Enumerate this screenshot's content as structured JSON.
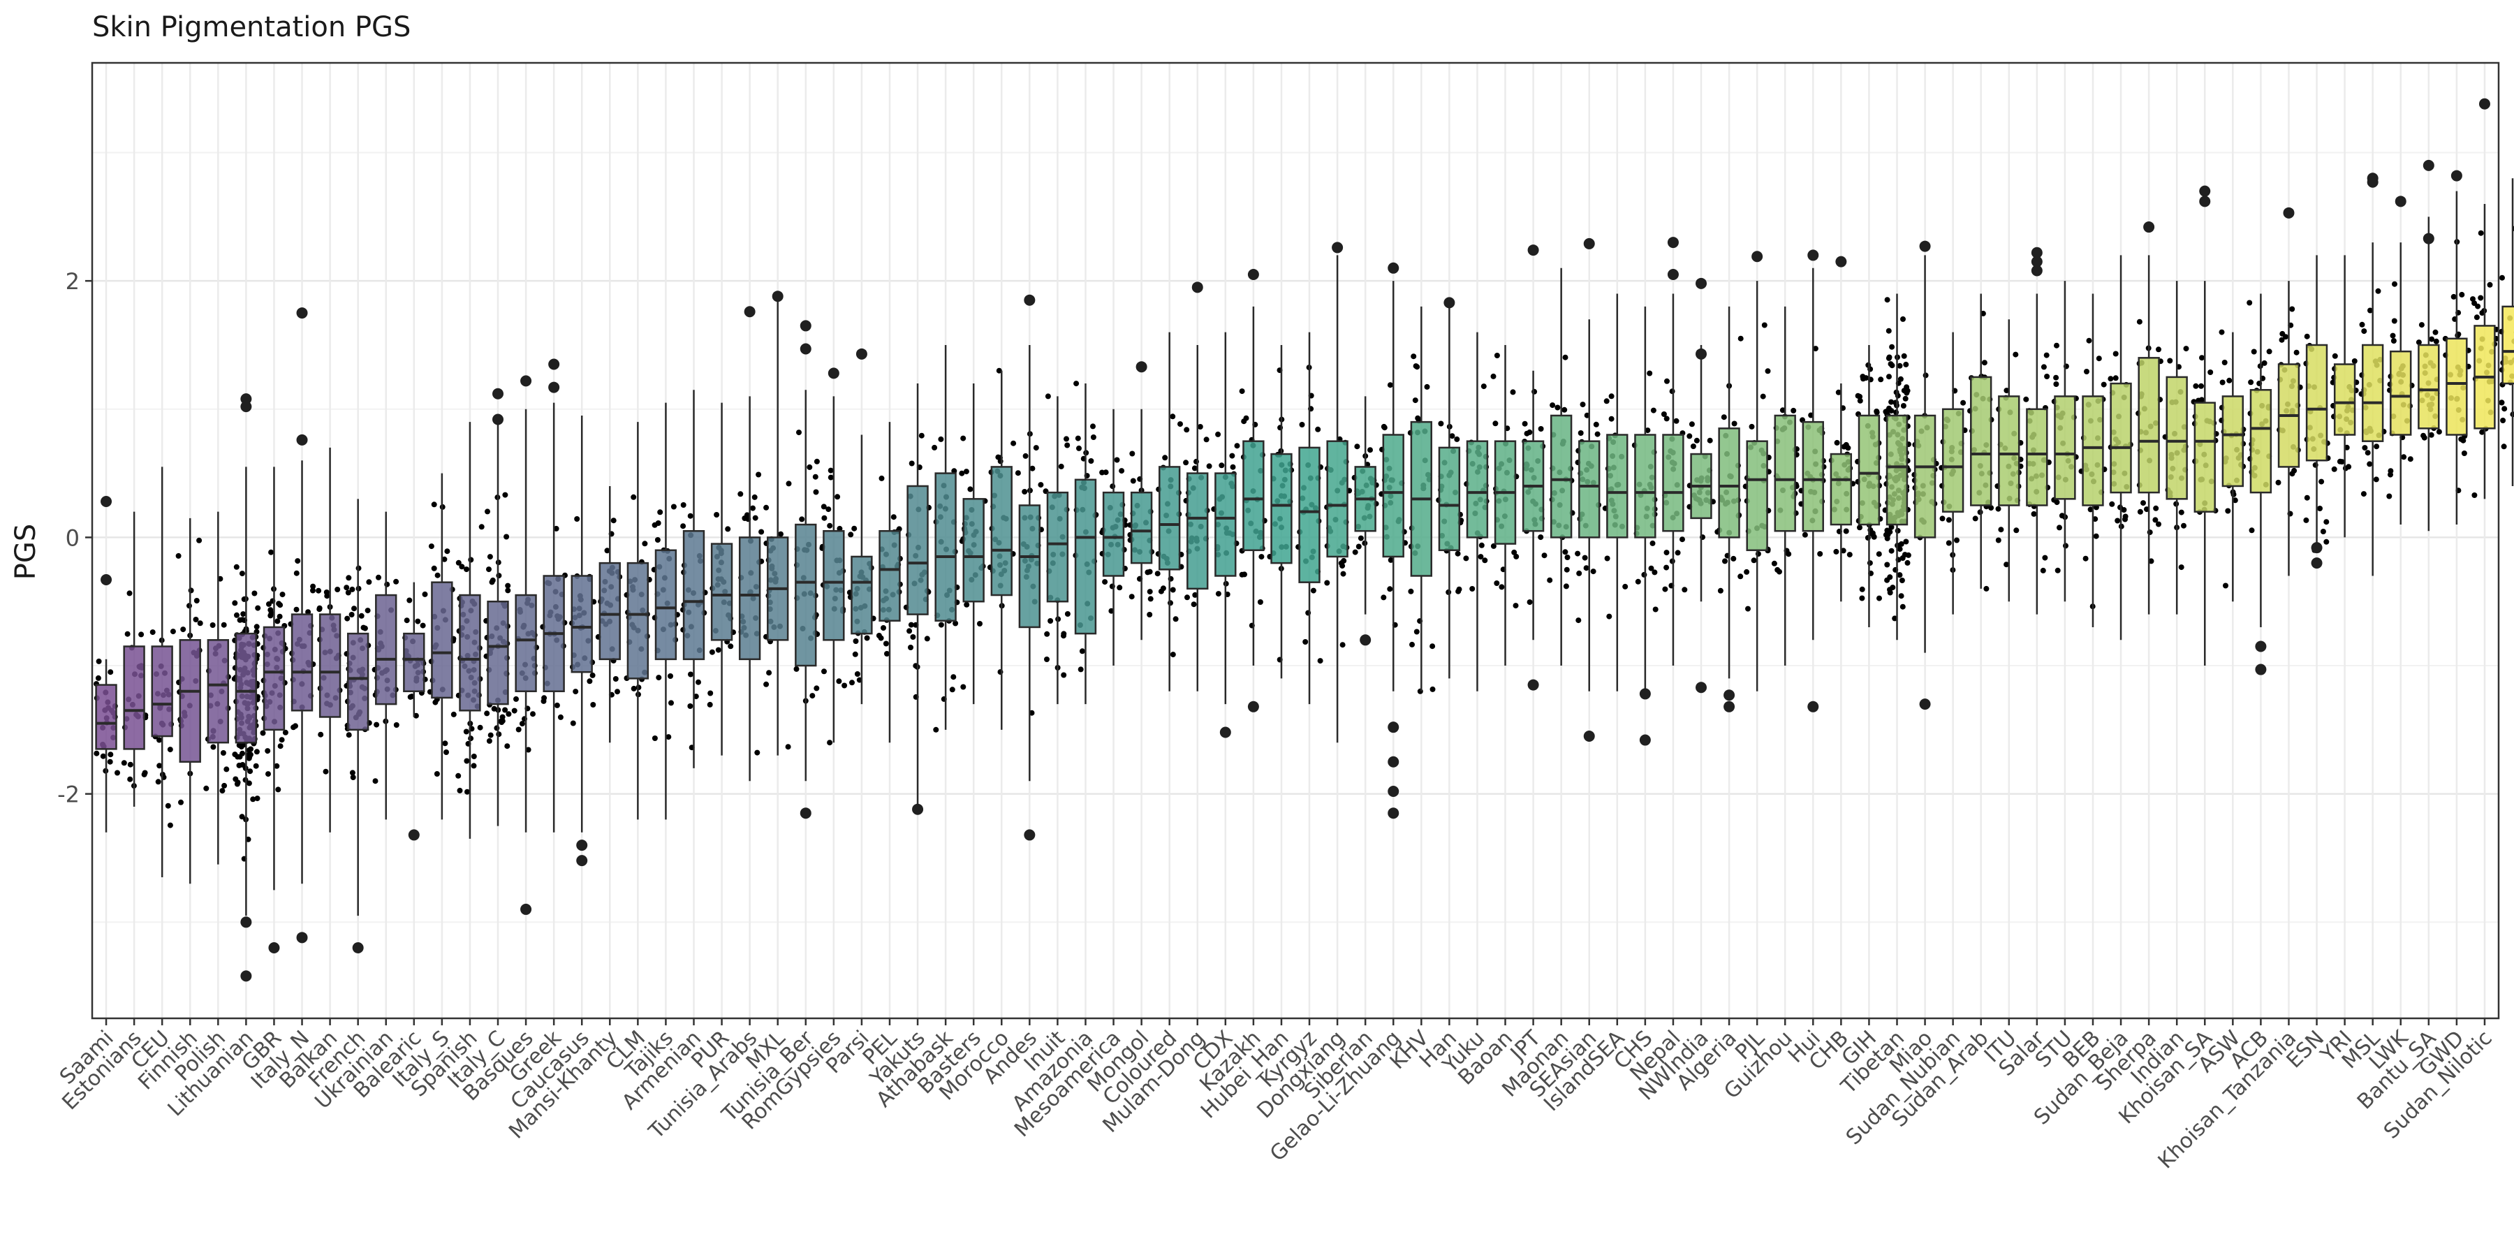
{
  "chart_data": {
    "type": "box",
    "title": "Skin Pigmentation PGS",
    "xlabel": "",
    "ylabel": "PGS",
    "ylim": [
      -3.75,
      3.7
    ],
    "yticks": [
      -2,
      0,
      2
    ],
    "ytick_labels": [
      "-2",
      "0",
      "2"
    ],
    "grid": true,
    "legend": "none",
    "jittered_points": true,
    "palette": {
      "start": "#7a4f93",
      "mid": "#3fa590",
      "end": "#f0e65a",
      "points": "#000000",
      "outliers": "#202020"
    },
    "categories": [
      "Saami",
      "Estonians",
      "CEU",
      "Finnish",
      "Polish",
      "Lithuanian",
      "GBR",
      "Italy_N",
      "Balkan",
      "French",
      "Ukrainian",
      "Balearic",
      "Italy_S",
      "Spanish",
      "Italy_C",
      "Basques",
      "Greek",
      "Caucasus",
      "Mansi-Khanty",
      "CLM",
      "Tajiks",
      "Armenian",
      "PUR",
      "Tunisia_Arabs",
      "MXL",
      "Tunisia_Ber",
      "RomGypsies",
      "Parsi",
      "PEL",
      "Yakuts",
      "Athabask",
      "Basters",
      "Morocco",
      "Andes",
      "Inuit",
      "Amazonia",
      "Mesoamerica",
      "Mongol",
      "Coloured",
      "Mulam-Dong",
      "CDX",
      "Kazakh",
      "Hubei_Han",
      "Kyrgyz",
      "Dongxiang",
      "Siberian",
      "Gelao-Li-Zhuang",
      "KHV",
      "Han",
      "Yuku",
      "Baoan",
      "JPT",
      "Maonan",
      "SEAsian",
      "IslandSEA",
      "CHS",
      "Nepal",
      "NWIndia",
      "Algeria",
      "PJL",
      "Guizhou",
      "Hui",
      "CHB",
      "GIH",
      "Tibetan",
      "Miao",
      "Sudan_Nubian",
      "Sudan_Arab",
      "ITU",
      "Salar",
      "STU",
      "BEB",
      "Sudan_Beja",
      "Sherpa",
      "Indian",
      "Khoisan_SA",
      "ASW",
      "ACB",
      "Khoisan_Tanzania",
      "ESN",
      "YRI",
      "MSL",
      "LWK",
      "Bantu_SA",
      "GWD",
      "Sudan_Nilotic"
    ],
    "boxes": [
      {
        "q1": -1.65,
        "median": -1.45,
        "q3": -1.15,
        "wlo": -2.3,
        "whi": -0.95,
        "out": [
          0.28,
          -0.33
        ]
      },
      {
        "q1": -1.65,
        "median": -1.35,
        "q3": -0.85,
        "wlo": -2.1,
        "whi": 0.2,
        "out": []
      },
      {
        "q1": -1.55,
        "median": -1.3,
        "q3": -0.85,
        "wlo": -2.65,
        "whi": 0.55,
        "out": []
      },
      {
        "q1": -1.75,
        "median": -1.2,
        "q3": -0.8,
        "wlo": -2.7,
        "whi": 0.15,
        "out": []
      },
      {
        "q1": -1.6,
        "median": -1.15,
        "q3": -0.8,
        "wlo": -2.55,
        "whi": 0.2,
        "out": []
      },
      {
        "q1": -1.6,
        "median": -1.2,
        "q3": -0.75,
        "wlo": -2.95,
        "whi": 0.55,
        "out": [
          1.08,
          1.02,
          -3.0,
          -3.42
        ]
      },
      {
        "q1": -1.5,
        "median": -1.05,
        "q3": -0.7,
        "wlo": -2.75,
        "whi": 0.55,
        "out": [
          -3.2
        ]
      },
      {
        "q1": -1.35,
        "median": -1.05,
        "q3": -0.6,
        "wlo": -2.7,
        "whi": 0.6,
        "out": [
          1.75,
          0.76,
          -3.12
        ]
      },
      {
        "q1": -1.4,
        "median": -1.05,
        "q3": -0.6,
        "wlo": -2.3,
        "whi": 0.7,
        "out": []
      },
      {
        "q1": -1.5,
        "median": -1.1,
        "q3": -0.75,
        "wlo": -2.95,
        "whi": 0.3,
        "out": [
          -3.2
        ]
      },
      {
        "q1": -1.3,
        "median": -0.95,
        "q3": -0.45,
        "wlo": -2.2,
        "whi": 0.2,
        "out": []
      },
      {
        "q1": -1.2,
        "median": -0.95,
        "q3": -0.75,
        "wlo": -1.4,
        "whi": -0.35,
        "out": [
          -2.32
        ]
      },
      {
        "q1": -1.25,
        "median": -0.9,
        "q3": -0.35,
        "wlo": -2.2,
        "whi": 0.5,
        "out": []
      },
      {
        "q1": -1.35,
        "median": -0.95,
        "q3": -0.45,
        "wlo": -2.35,
        "whi": 0.9,
        "out": []
      },
      {
        "q1": -1.3,
        "median": -0.85,
        "q3": -0.5,
        "wlo": -2.25,
        "whi": 0.95,
        "out": [
          1.12,
          0.92
        ]
      },
      {
        "q1": -1.2,
        "median": -0.8,
        "q3": -0.45,
        "wlo": -2.3,
        "whi": 1.0,
        "out": [
          1.22,
          -2.9
        ]
      },
      {
        "q1": -1.2,
        "median": -0.75,
        "q3": -0.3,
        "wlo": -2.3,
        "whi": 1.05,
        "out": [
          1.35,
          1.17
        ]
      },
      {
        "q1": -1.05,
        "median": -0.7,
        "q3": -0.3,
        "wlo": -2.3,
        "whi": 0.95,
        "out": [
          -2.4,
          -2.52
        ]
      },
      {
        "q1": -0.95,
        "median": -0.6,
        "q3": -0.2,
        "wlo": -1.6,
        "whi": 0.4,
        "out": []
      },
      {
        "q1": -1.1,
        "median": -0.6,
        "q3": -0.2,
        "wlo": -2.2,
        "whi": 0.9,
        "out": []
      },
      {
        "q1": -0.95,
        "median": -0.55,
        "q3": -0.1,
        "wlo": -2.2,
        "whi": 1.05,
        "out": []
      },
      {
        "q1": -0.95,
        "median": -0.5,
        "q3": 0.05,
        "wlo": -1.8,
        "whi": 1.15,
        "out": []
      },
      {
        "q1": -0.8,
        "median": -0.45,
        "q3": -0.05,
        "wlo": -1.7,
        "whi": 1.05,
        "out": []
      },
      {
        "q1": -0.95,
        "median": -0.45,
        "q3": 0.0,
        "wlo": -1.9,
        "whi": 1.1,
        "out": [
          1.76
        ]
      },
      {
        "q1": -0.8,
        "median": -0.4,
        "q3": 0.0,
        "wlo": -1.7,
        "whi": 1.85,
        "out": [
          1.88
        ]
      },
      {
        "q1": -1.0,
        "median": -0.35,
        "q3": 0.1,
        "wlo": -1.9,
        "whi": 1.15,
        "out": [
          1.65,
          1.47,
          -2.15
        ]
      },
      {
        "q1": -0.8,
        "median": -0.35,
        "q3": 0.05,
        "wlo": -1.6,
        "whi": 1.1,
        "out": [
          1.28
        ]
      },
      {
        "q1": -0.75,
        "median": -0.35,
        "q3": -0.15,
        "wlo": -1.3,
        "whi": 0.8,
        "out": [
          1.43
        ]
      },
      {
        "q1": -0.65,
        "median": -0.25,
        "q3": 0.05,
        "wlo": -1.6,
        "whi": 0.9,
        "out": []
      },
      {
        "q1": -0.6,
        "median": -0.2,
        "q3": 0.4,
        "wlo": -2.1,
        "whi": 1.2,
        "out": [
          -2.12
        ]
      },
      {
        "q1": -0.65,
        "median": -0.15,
        "q3": 0.5,
        "wlo": -1.5,
        "whi": 1.5,
        "out": []
      },
      {
        "q1": -0.5,
        "median": -0.15,
        "q3": 0.3,
        "wlo": -1.3,
        "whi": 1.2,
        "out": []
      },
      {
        "q1": -0.45,
        "median": -0.1,
        "q3": 0.55,
        "wlo": -1.5,
        "whi": 1.3,
        "out": []
      },
      {
        "q1": -0.7,
        "median": -0.15,
        "q3": 0.25,
        "wlo": -1.9,
        "whi": 1.5,
        "out": [
          1.85,
          -2.32
        ]
      },
      {
        "q1": -0.5,
        "median": -0.05,
        "q3": 0.35,
        "wlo": -1.3,
        "whi": 1.1,
        "out": []
      },
      {
        "q1": -0.75,
        "median": 0.0,
        "q3": 0.45,
        "wlo": -1.3,
        "whi": 1.2,
        "out": []
      },
      {
        "q1": -0.3,
        "median": 0.0,
        "q3": 0.35,
        "wlo": -1.0,
        "whi": 1.0,
        "out": []
      },
      {
        "q1": -0.2,
        "median": 0.05,
        "q3": 0.35,
        "wlo": -0.8,
        "whi": 1.0,
        "out": [
          1.33
        ]
      },
      {
        "q1": -0.25,
        "median": 0.1,
        "q3": 0.55,
        "wlo": -1.2,
        "whi": 1.6,
        "out": []
      },
      {
        "q1": -0.4,
        "median": 0.15,
        "q3": 0.5,
        "wlo": -1.2,
        "whi": 1.5,
        "out": [
          1.95
        ]
      },
      {
        "q1": -0.3,
        "median": 0.15,
        "q3": 0.5,
        "wlo": -1.3,
        "whi": 1.6,
        "out": [
          -1.52
        ]
      },
      {
        "q1": -0.1,
        "median": 0.3,
        "q3": 0.75,
        "wlo": -1.0,
        "whi": 1.8,
        "out": [
          2.05,
          -1.32
        ]
      },
      {
        "q1": -0.2,
        "median": 0.25,
        "q3": 0.65,
        "wlo": -1.1,
        "whi": 1.5,
        "out": []
      },
      {
        "q1": -0.35,
        "median": 0.2,
        "q3": 0.7,
        "wlo": -1.3,
        "whi": 1.6,
        "out": []
      },
      {
        "q1": -0.15,
        "median": 0.25,
        "q3": 0.75,
        "wlo": -1.6,
        "whi": 2.2,
        "out": [
          2.26
        ]
      },
      {
        "q1": 0.05,
        "median": 0.3,
        "q3": 0.55,
        "wlo": -0.6,
        "whi": 1.1,
        "out": [
          -0.8
        ]
      },
      {
        "q1": -0.15,
        "median": 0.35,
        "q3": 0.8,
        "wlo": -1.2,
        "whi": 2.0,
        "out": [
          2.1,
          -1.48,
          -1.75,
          -1.98,
          -2.15
        ]
      },
      {
        "q1": -0.3,
        "median": 0.3,
        "q3": 0.9,
        "wlo": -1.2,
        "whi": 1.8,
        "out": []
      },
      {
        "q1": -0.1,
        "median": 0.25,
        "q3": 0.7,
        "wlo": -1.1,
        "whi": 1.8,
        "out": [
          1.83
        ]
      },
      {
        "q1": 0.0,
        "median": 0.35,
        "q3": 0.75,
        "wlo": -1.2,
        "whi": 1.6,
        "out": []
      },
      {
        "q1": -0.05,
        "median": 0.35,
        "q3": 0.75,
        "wlo": -1.0,
        "whi": 1.5,
        "out": []
      },
      {
        "q1": 0.05,
        "median": 0.4,
        "q3": 0.75,
        "wlo": -0.8,
        "whi": 1.3,
        "out": [
          2.24,
          -1.15
        ]
      },
      {
        "q1": 0.0,
        "median": 0.45,
        "q3": 0.95,
        "wlo": -1.0,
        "whi": 2.1,
        "out": []
      },
      {
        "q1": 0.0,
        "median": 0.4,
        "q3": 0.75,
        "wlo": -1.2,
        "whi": 1.7,
        "out": [
          2.29,
          -1.55
        ]
      },
      {
        "q1": 0.0,
        "median": 0.35,
        "q3": 0.8,
        "wlo": -1.2,
        "whi": 1.9,
        "out": []
      },
      {
        "q1": 0.0,
        "median": 0.35,
        "q3": 0.8,
        "wlo": -1.2,
        "whi": 1.8,
        "out": [
          -1.22,
          -1.58
        ]
      },
      {
        "q1": 0.05,
        "median": 0.35,
        "q3": 0.8,
        "wlo": -1.0,
        "whi": 1.9,
        "out": [
          2.3,
          2.05
        ]
      },
      {
        "q1": 0.15,
        "median": 0.4,
        "q3": 0.65,
        "wlo": -0.5,
        "whi": 1.5,
        "out": [
          1.98,
          1.43,
          -1.17
        ]
      },
      {
        "q1": 0.0,
        "median": 0.4,
        "q3": 0.85,
        "wlo": -1.1,
        "whi": 1.8,
        "out": [
          -1.23,
          -1.32
        ]
      },
      {
        "q1": -0.1,
        "median": 0.45,
        "q3": 0.75,
        "wlo": -1.2,
        "whi": 2.0,
        "out": [
          2.19
        ]
      },
      {
        "q1": 0.05,
        "median": 0.45,
        "q3": 0.95,
        "wlo": -1.0,
        "whi": 1.8,
        "out": []
      },
      {
        "q1": 0.05,
        "median": 0.45,
        "q3": 0.9,
        "wlo": -0.8,
        "whi": 2.1,
        "out": [
          2.2,
          -1.32
        ]
      },
      {
        "q1": 0.1,
        "median": 0.45,
        "q3": 0.65,
        "wlo": -0.5,
        "whi": 1.2,
        "out": [
          2.15
        ]
      },
      {
        "q1": 0.1,
        "median": 0.5,
        "q3": 0.95,
        "wlo": -0.7,
        "whi": 1.5,
        "out": []
      },
      {
        "q1": 0.1,
        "median": 0.55,
        "q3": 0.95,
        "wlo": -0.8,
        "whi": 1.9,
        "out": []
      },
      {
        "q1": 0.0,
        "median": 0.55,
        "q3": 0.95,
        "wlo": -0.9,
        "whi": 2.2,
        "out": [
          2.27,
          -1.3
        ]
      },
      {
        "q1": 0.2,
        "median": 0.55,
        "q3": 1.0,
        "wlo": -0.6,
        "whi": 1.6,
        "out": []
      },
      {
        "q1": 0.25,
        "median": 0.65,
        "q3": 1.25,
        "wlo": -0.4,
        "whi": 1.9,
        "out": []
      },
      {
        "q1": 0.25,
        "median": 0.65,
        "q3": 1.1,
        "wlo": -0.5,
        "whi": 1.7,
        "out": []
      },
      {
        "q1": 0.25,
        "median": 0.65,
        "q3": 1.0,
        "wlo": -0.6,
        "whi": 1.9,
        "out": [
          2.22,
          2.15,
          2.08
        ]
      },
      {
        "q1": 0.3,
        "median": 0.65,
        "q3": 1.1,
        "wlo": -0.5,
        "whi": 2.0,
        "out": []
      },
      {
        "q1": 0.25,
        "median": 0.7,
        "q3": 1.1,
        "wlo": -0.7,
        "whi": 1.9,
        "out": []
      },
      {
        "q1": 0.35,
        "median": 0.7,
        "q3": 1.2,
        "wlo": -0.8,
        "whi": 2.2,
        "out": []
      },
      {
        "q1": 0.35,
        "median": 0.75,
        "q3": 1.4,
        "wlo": -0.6,
        "whi": 2.2,
        "out": [
          2.42
        ]
      },
      {
        "q1": 0.3,
        "median": 0.75,
        "q3": 1.25,
        "wlo": -0.6,
        "whi": 2.0,
        "out": []
      },
      {
        "q1": 0.2,
        "median": 0.75,
        "q3": 1.05,
        "wlo": -1.0,
        "whi": 2.0,
        "out": [
          2.7,
          2.62
        ]
      },
      {
        "q1": 0.4,
        "median": 0.8,
        "q3": 1.1,
        "wlo": -0.5,
        "whi": 1.6,
        "out": []
      },
      {
        "q1": 0.35,
        "median": 0.85,
        "q3": 1.15,
        "wlo": -0.7,
        "whi": 1.9,
        "out": [
          -0.85,
          -1.03
        ]
      },
      {
        "q1": 0.55,
        "median": 0.95,
        "q3": 1.35,
        "wlo": -0.3,
        "whi": 2.0,
        "out": [
          2.53
        ]
      },
      {
        "q1": 0.6,
        "median": 1.0,
        "q3": 1.5,
        "wlo": -0.1,
        "whi": 2.2,
        "out": [
          -0.08,
          -0.2
        ]
      },
      {
        "q1": 0.8,
        "median": 1.05,
        "q3": 1.35,
        "wlo": 0.0,
        "whi": 2.2,
        "out": []
      },
      {
        "q1": 0.75,
        "median": 1.05,
        "q3": 1.5,
        "wlo": -0.3,
        "whi": 2.3,
        "out": [
          2.8,
          2.77
        ]
      },
      {
        "q1": 0.8,
        "median": 1.1,
        "q3": 1.45,
        "wlo": 0.1,
        "whi": 2.3,
        "out": [
          2.62
        ]
      },
      {
        "q1": 0.85,
        "median": 1.15,
        "q3": 1.5,
        "wlo": 0.05,
        "whi": 2.5,
        "out": [
          2.9,
          2.33
        ]
      },
      {
        "q1": 0.8,
        "median": 1.2,
        "q3": 1.55,
        "wlo": 0.1,
        "whi": 2.7,
        "out": [
          2.82
        ]
      },
      {
        "q1": 0.85,
        "median": 1.25,
        "q3": 1.65,
        "wlo": 0.3,
        "whi": 2.6,
        "out": [
          3.38
        ]
      },
      {
        "q1": 1.2,
        "median": 1.45,
        "q3": 1.8,
        "wlo": 0.4,
        "whi": 2.8,
        "out": []
      }
    ]
  }
}
